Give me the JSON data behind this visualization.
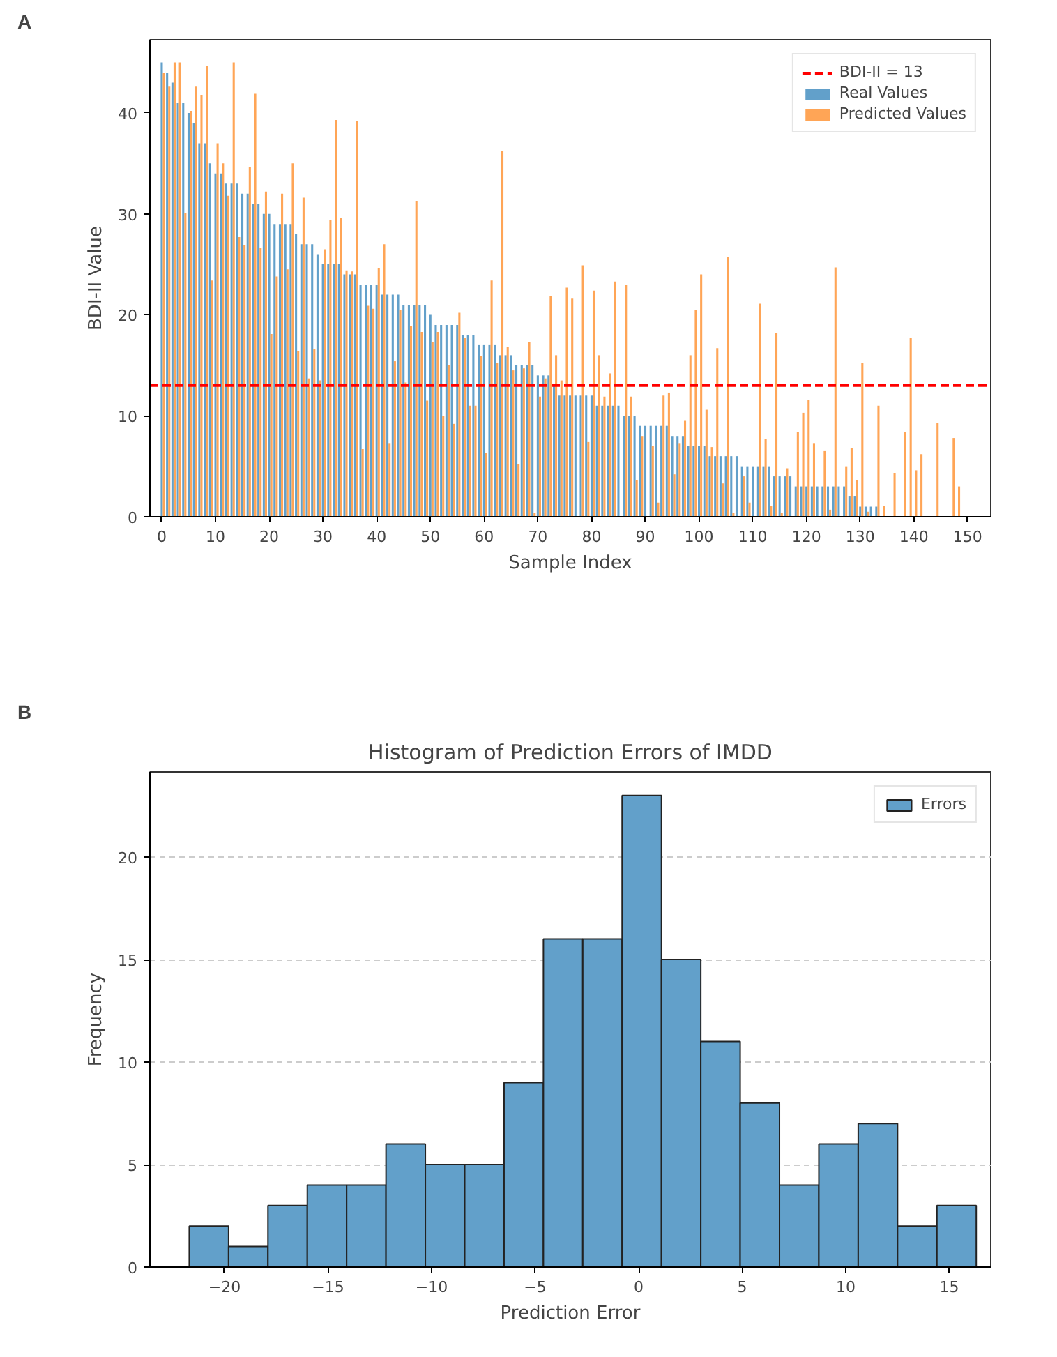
{
  "chart_data": [
    {
      "type": "bar",
      "xlabel": "Sample Index",
      "ylabel": "BDI-II Value",
      "annotations": [
        "A"
      ],
      "x": [
        0,
        1,
        2,
        3,
        4,
        5,
        6,
        7,
        8,
        9,
        10,
        11,
        12,
        13,
        14,
        15,
        16,
        17,
        18,
        19,
        20,
        21,
        22,
        23,
        24,
        25,
        26,
        27,
        28,
        29,
        30,
        31,
        32,
        33,
        34,
        35,
        36,
        37,
        38,
        39,
        40,
        41,
        42,
        43,
        44,
        45,
        46,
        47,
        48,
        49,
        50,
        51,
        52,
        53,
        54,
        55,
        56,
        57,
        58,
        59,
        60,
        61,
        62,
        63,
        64,
        65,
        66,
        67,
        68,
        69,
        70,
        71,
        72,
        73,
        74,
        75,
        76,
        77,
        78,
        79,
        80,
        81,
        82,
        83,
        84,
        85,
        86,
        87,
        88,
        89,
        90,
        91,
        92,
        93,
        94,
        95,
        96,
        97,
        98,
        99,
        100,
        101,
        102,
        103,
        104,
        105,
        106,
        107,
        108,
        109,
        110,
        111,
        112,
        113,
        114,
        115,
        116,
        117,
        118,
        119,
        120,
        121,
        122,
        123,
        124,
        125,
        126,
        127,
        128,
        129,
        130,
        131,
        132,
        133,
        134,
        135,
        136,
        137,
        138,
        139,
        140,
        141,
        142,
        143,
        144,
        145,
        146,
        147,
        148
      ],
      "series": [
        {
          "name": "Real Values",
          "color": "#62a0ca",
          "values": [
            45,
            44,
            43,
            41,
            41,
            40,
            39,
            37,
            37,
            35,
            34,
            34,
            33,
            33,
            33,
            32,
            32,
            31,
            31,
            30,
            30,
            29,
            29,
            29,
            29,
            28,
            27,
            27,
            27,
            26,
            25,
            25,
            25,
            25,
            24,
            24,
            24,
            23,
            23,
            23,
            23,
            22,
            22,
            22,
            22,
            21,
            21,
            21,
            21,
            21,
            20,
            19,
            19,
            19,
            19,
            19,
            18,
            18,
            18,
            17,
            17,
            17,
            17,
            16,
            16,
            16,
            15,
            15,
            15,
            15,
            14,
            14,
            14,
            13,
            12,
            12,
            12,
            12,
            12,
            12,
            12,
            11,
            11,
            11,
            11,
            11,
            10,
            10,
            10,
            9,
            9,
            9,
            9,
            9,
            9,
            8,
            8,
            8,
            7,
            7,
            7,
            7,
            6,
            6,
            6,
            6,
            6,
            6,
            5,
            5,
            5,
            5,
            5,
            5,
            4,
            4,
            4,
            4,
            3,
            3,
            3,
            3,
            3,
            3,
            3,
            3,
            3,
            3,
            2,
            2,
            1,
            1,
            1,
            1,
            null,
            null,
            null,
            null,
            null,
            null,
            null,
            null,
            null,
            null,
            null,
            null,
            null,
            null,
            null
          ]
        },
        {
          "name": "Predicted Values",
          "color": "#ffa556",
          "values": [
            44,
            42.6,
            45,
            45,
            30.1,
            40.2,
            42.6,
            41.8,
            44.7,
            23.4,
            37,
            35,
            31.8,
            45,
            27.7,
            26.9,
            34.6,
            41.9,
            26.6,
            32.2,
            18.1,
            23.8,
            32,
            24.5,
            35,
            16.4,
            31.6,
            13.7,
            16.6,
            13.5,
            26.5,
            29.4,
            39.3,
            29.6,
            24.4,
            24.3,
            39.2,
            6.7,
            20.9,
            20.6,
            24.6,
            27,
            7.3,
            15.4,
            20.5,
            13.3,
            18.9,
            31.3,
            18.3,
            11.5,
            17.3,
            18.3,
            10,
            15,
            9.2,
            20.2,
            17.7,
            11,
            11,
            15.9,
            6.3,
            23.4,
            15.2,
            36.2,
            16.8,
            14.5,
            5.2,
            14.7,
            17.3,
            0.4,
            11.9,
            13.7,
            21.9,
            16,
            13.5,
            22.7,
            21.6,
            null,
            24.9,
            7.4,
            22.4,
            16,
            11.9,
            14.2,
            23.3,
            null,
            23,
            11.9,
            3.6,
            8,
            null,
            7,
            1.4,
            12,
            12.3,
            4.2,
            7.3,
            9.5,
            16,
            20.5,
            24,
            10.6,
            6.9,
            16.7,
            3.3,
            25.7,
            0.4,
            null,
            4,
            1.4,
            null,
            21.1,
            7.7,
            1.1,
            18.2,
            0.4,
            4.8,
            null,
            8.4,
            10.3,
            11.6,
            7.3,
            null,
            6.5,
            0.7,
            24.7,
            null,
            5,
            6.8,
            3.6,
            15.2,
            0.5,
            null,
            11,
            1.1,
            null,
            4.3,
            null,
            8.4,
            17.7,
            4.6,
            6.2,
            null,
            null,
            9.3,
            null,
            null,
            7.8,
            3
          ]
        }
      ],
      "xlim": [
        -2.2,
        154.3
      ],
      "xticks": [
        0,
        10,
        20,
        30,
        40,
        50,
        60,
        70,
        80,
        90,
        100,
        110,
        120,
        130,
        140,
        150
      ],
      "ylim": [
        0,
        47.25
      ],
      "yticks": [
        0,
        10,
        20,
        30,
        40
      ],
      "ref_lines": [
        {
          "axis": "y",
          "value": 13,
          "label": "BDI-II = 13",
          "color": "#ff0000",
          "line_style": "dashed"
        }
      ],
      "legend": "top right",
      "grid": false
    },
    {
      "type": "histogram",
      "title": "Histogram of Prediction Errors of IMDD",
      "xlabel": "Prediction Error",
      "ylabel": "Frequency",
      "annotations": [
        "B"
      ],
      "bins": [
        -21.7,
        -19.8,
        -17.9,
        -16.0,
        -14.1,
        -12.2,
        -10.3,
        -8.4,
        -6.5,
        -4.6,
        -2.7,
        -0.8,
        1.1,
        3.0,
        4.9,
        6.8,
        8.7,
        10.6,
        12.5,
        14.4,
        16.3
      ],
      "series": [
        {
          "name": "Errors",
          "color": "#62a0ca",
          "values": [
            2,
            1,
            3,
            4,
            4,
            6,
            5,
            5,
            9,
            16,
            16,
            23,
            15,
            11,
            8,
            4,
            6,
            7,
            2,
            3
          ]
        }
      ],
      "xlim": [
        -23.6,
        17.0
      ],
      "xticks": [
        -20,
        -15,
        -10,
        -5,
        0,
        5,
        10,
        15
      ],
      "ylim": [
        0,
        24.15
      ],
      "yticks": [
        0,
        5,
        10,
        15,
        20
      ],
      "legend": "top right",
      "grid": "y"
    }
  ]
}
